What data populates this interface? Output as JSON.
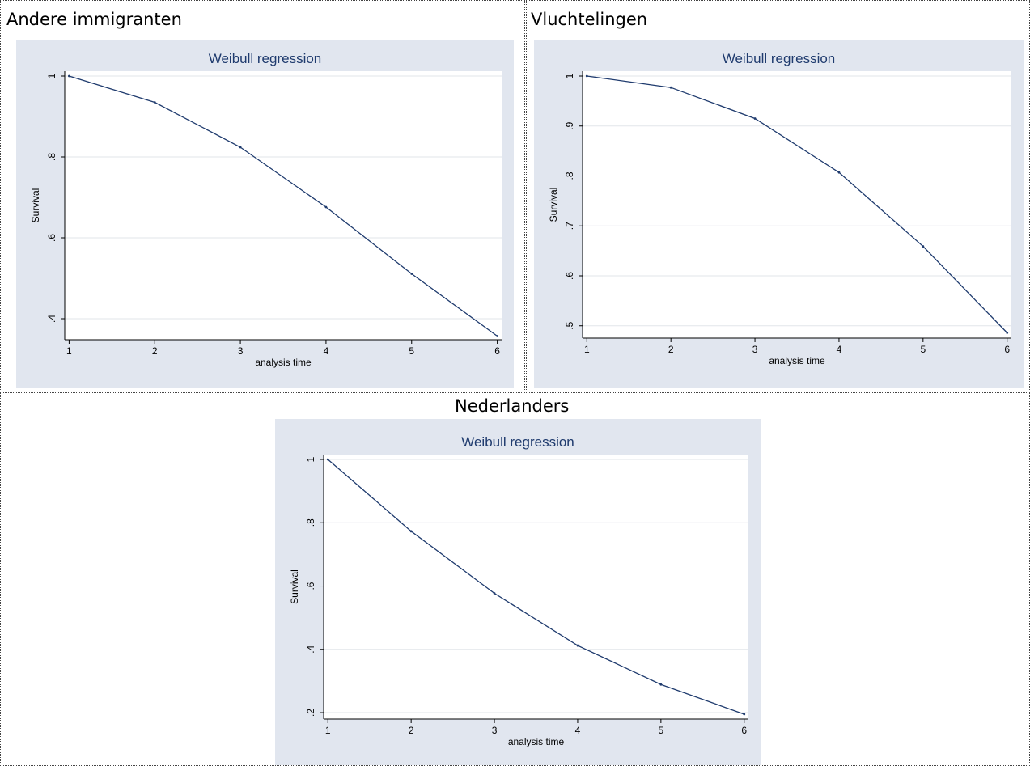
{
  "panels": [
    {
      "label": "Andere immigranten"
    },
    {
      "label": "Vluchtelingen"
    },
    {
      "label": "Nederlanders"
    }
  ],
  "colors": {
    "panel_background": "#e1e6ef",
    "plot_background": "#ffffff",
    "line": "#1f3b6e",
    "grid": "#e2e6ea",
    "title": "#1f3b6e"
  },
  "chart_data": [
    {
      "type": "line",
      "title": "Weibull regression",
      "xlabel": "analysis time",
      "ylabel": "Survival",
      "x": [
        1,
        2,
        3,
        4,
        5,
        6
      ],
      "series": [
        {
          "values": [
            1.0,
            0.935,
            0.824,
            0.676,
            0.511,
            0.357
          ]
        }
      ],
      "xlim": [
        1,
        6
      ],
      "ylim": [
        0.36,
        1.0
      ],
      "xticks": [
        1,
        2,
        3,
        4,
        5,
        6
      ],
      "xtick_labels": [
        "1",
        "2",
        "3",
        "4",
        "5",
        "6"
      ],
      "yticks": [
        0.4,
        0.6,
        0.8,
        1.0
      ],
      "ytick_labels": [
        ".4",
        ".6",
        ".8",
        "1"
      ],
      "grid": true,
      "legend": "none"
    },
    {
      "type": "line",
      "title": "Weibull regression",
      "xlabel": "analysis time",
      "ylabel": "Survival",
      "x": [
        1,
        2,
        3,
        4,
        5,
        6
      ],
      "series": [
        {
          "values": [
            1.0,
            0.977,
            0.915,
            0.807,
            0.659,
            0.486
          ]
        }
      ],
      "xlim": [
        1,
        6
      ],
      "ylim": [
        0.485,
        1.0
      ],
      "xticks": [
        1,
        2,
        3,
        4,
        5,
        6
      ],
      "xtick_labels": [
        "1",
        "2",
        "3",
        "4",
        "5",
        "6"
      ],
      "yticks": [
        0.5,
        0.6,
        0.7,
        0.8,
        0.9,
        1.0
      ],
      "ytick_labels": [
        ".5",
        ".6",
        ".7",
        ".8",
        ".9",
        "1"
      ],
      "grid": true,
      "legend": "none"
    },
    {
      "type": "line",
      "title": "Weibull regression",
      "xlabel": "analysis time",
      "ylabel": "Survival",
      "x": [
        1,
        2,
        3,
        4,
        5,
        6
      ],
      "series": [
        {
          "values": [
            1.0,
            0.773,
            0.577,
            0.412,
            0.289,
            0.195
          ]
        }
      ],
      "xlim": [
        1,
        6
      ],
      "ylim": [
        0.195,
        1.0
      ],
      "xticks": [
        1,
        2,
        3,
        4,
        5,
        6
      ],
      "xtick_labels": [
        "1",
        "2",
        "3",
        "4",
        "5",
        "6"
      ],
      "yticks": [
        0.2,
        0.4,
        0.6,
        0.8,
        1.0
      ],
      "ytick_labels": [
        ".2",
        ".4",
        ".6",
        ".8",
        "1"
      ],
      "grid": true,
      "legend": "none"
    }
  ]
}
